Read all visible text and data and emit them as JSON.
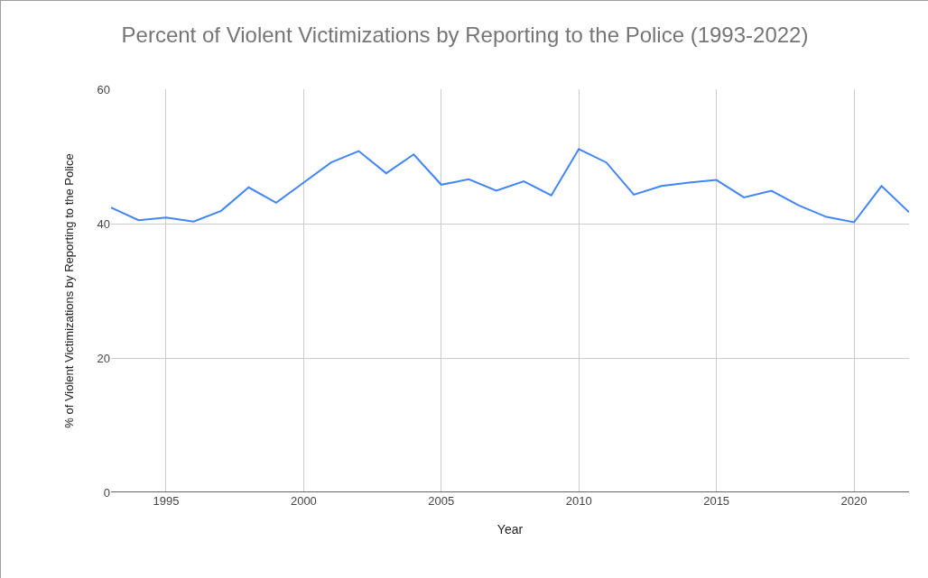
{
  "chart_data": {
    "type": "line",
    "title": "Percent of Violent Victimizations by Reporting to the Police (1993-2022)",
    "xlabel": "Year",
    "ylabel": "% of Violent Victimizations by Reporting to the Police",
    "x": [
      1993,
      1994,
      1995,
      1996,
      1997,
      1998,
      1999,
      2000,
      2001,
      2002,
      2003,
      2004,
      2005,
      2006,
      2007,
      2008,
      2009,
      2010,
      2011,
      2012,
      2013,
      2014,
      2015,
      2016,
      2017,
      2018,
      2019,
      2020,
      2021,
      2022
    ],
    "series": [
      {
        "color": "#4285f4",
        "values": [
          42.4,
          40.5,
          40.9,
          40.3,
          41.9,
          45.4,
          43.1,
          46.1,
          49.1,
          50.8,
          47.5,
          50.3,
          45.8,
          46.6,
          44.9,
          46.3,
          44.2,
          51.1,
          49.1,
          44.3,
          45.6,
          46.1,
          46.5,
          43.9,
          44.9,
          42.7,
          41.0,
          40.2,
          45.6,
          41.7
        ]
      }
    ],
    "xlim": [
      1993,
      2022
    ],
    "xticks": [
      1995,
      2000,
      2005,
      2010,
      2015,
      2020
    ],
    "ylim": [
      0,
      60
    ],
    "yticks": [
      0,
      20,
      40,
      60
    ],
    "grid": true,
    "marker": "none",
    "line_style": "solid"
  }
}
